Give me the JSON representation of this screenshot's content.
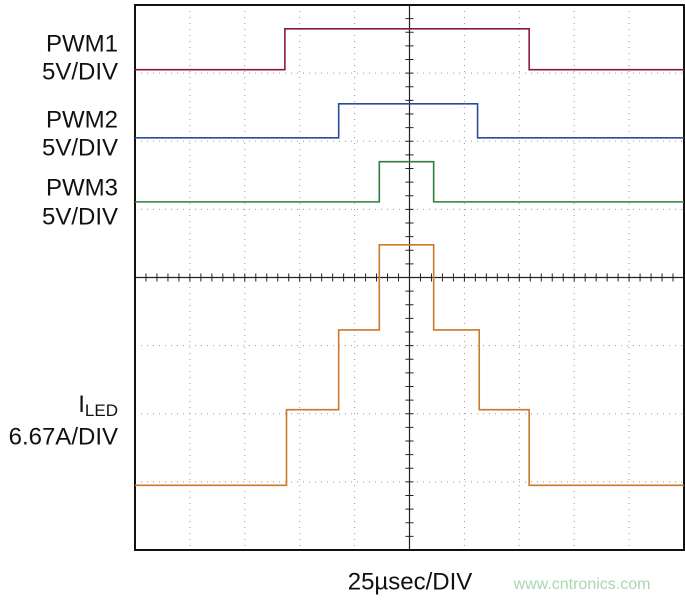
{
  "chart_data": {
    "type": "line",
    "xlabel": "25µsec/DIV",
    "watermark": "www.cntronics.com",
    "xlim": [
      0,
      10
    ],
    "ylim": [
      0,
      8
    ],
    "xticks": [
      0,
      1,
      2,
      3,
      4,
      5,
      6,
      7,
      8,
      9,
      10
    ],
    "yticks": [
      0,
      1,
      2,
      3,
      4,
      5,
      6,
      7,
      8
    ],
    "grid": true,
    "series": [
      {
        "name": "PWM1",
        "scale": "5V/DIV",
        "color": "#8b1a3a",
        "x": [
          0,
          2.73,
          2.73,
          7.18,
          7.18,
          10
        ],
        "values": [
          7.05,
          7.05,
          7.65,
          7.65,
          7.05,
          7.05
        ]
      },
      {
        "name": "PWM2",
        "scale": "5V/DIV",
        "color": "#2a4a9a",
        "x": [
          0,
          3.71,
          3.71,
          6.24,
          6.24,
          10
        ],
        "values": [
          6.05,
          6.05,
          6.55,
          6.55,
          6.05,
          6.05
        ]
      },
      {
        "name": "PWM3",
        "scale": "5V/DIV",
        "color": "#2e7d3a",
        "x": [
          0,
          4.45,
          4.45,
          5.44,
          5.44,
          10
        ],
        "values": [
          5.11,
          5.11,
          5.7,
          5.7,
          5.11,
          5.11
        ]
      },
      {
        "name": "I",
        "name_sub": "LED",
        "scale": "6.67A/DIV",
        "color": "#c97a2a",
        "x": [
          0,
          2.76,
          2.76,
          3.71,
          3.71,
          4.45,
          4.45,
          5.44,
          5.44,
          6.27,
          6.27,
          7.18,
          7.18,
          10
        ],
        "values": [
          0.95,
          0.95,
          2.06,
          2.06,
          3.23,
          3.23,
          4.48,
          4.48,
          3.23,
          3.23,
          2.06,
          2.06,
          0.95,
          0.95
        ]
      }
    ]
  }
}
